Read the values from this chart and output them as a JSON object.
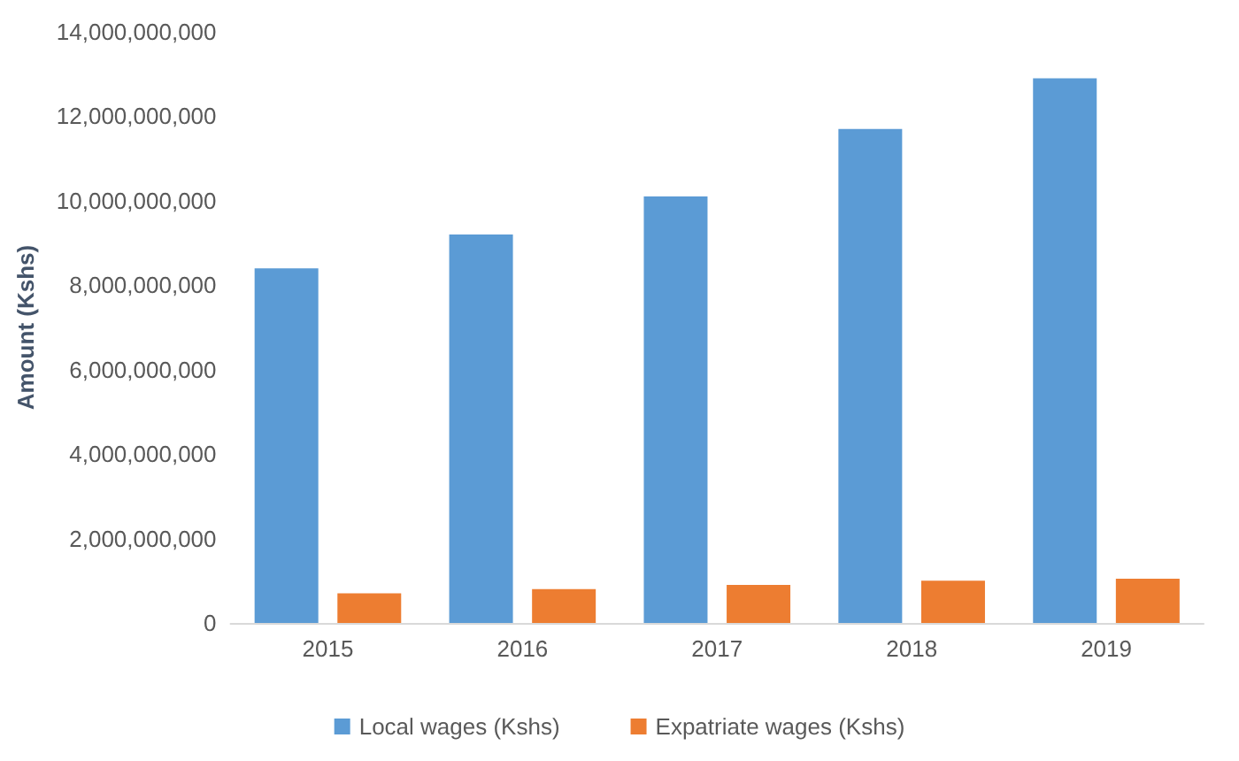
{
  "chart_data": {
    "type": "bar",
    "ylabel": "Amount (Kshs)",
    "categories": [
      "2015",
      "2016",
      "2017",
      "2018",
      "2019"
    ],
    "series": [
      {
        "name": "Local wages (Kshs)",
        "color": "#5b9bd5",
        "values": [
          8400000000,
          9200000000,
          10100000000,
          11700000000,
          12900000000
        ]
      },
      {
        "name": "Expatriate wages (Kshs)",
        "color": "#ed7d31",
        "values": [
          700000000,
          800000000,
          900000000,
          1000000000,
          1050000000
        ]
      }
    ],
    "ylim": [
      0,
      14000000000
    ],
    "yticks": [
      0,
      {
        "value": 2000000000,
        "label": "2,000,000,000"
      },
      {
        "value": 4000000000,
        "label": "4,000,000,000"
      },
      {
        "value": 6000000000,
        "label": "6,000,000,000"
      },
      {
        "value": 8000000000,
        "label": "8,000,000,000"
      },
      {
        "value": 10000000000,
        "label": "10,000,000,000"
      },
      {
        "value": 12000000000,
        "label": "12,000,000,000"
      },
      {
        "value": 14000000000,
        "label": "14,000,000,000"
      }
    ],
    "grid": false,
    "legend": "bottom"
  }
}
